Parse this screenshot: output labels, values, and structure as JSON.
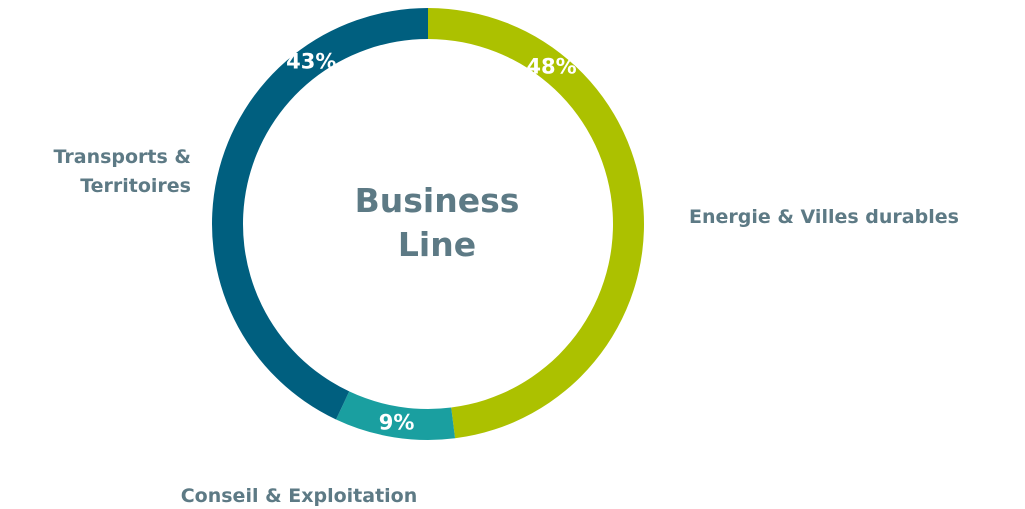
{
  "chart_data": {
    "type": "pie",
    "donut": true,
    "title_lines": [
      "Business",
      "Line"
    ],
    "slices": [
      {
        "label": "Energie & Villes durables",
        "value": 48,
        "value_label": "48%",
        "color": "#acc100"
      },
      {
        "label": "Conseil & Exploitation",
        "value": 9,
        "value_label": "9%",
        "color": "#1a9fa0"
      },
      {
        "label": "Transports & Territoires",
        "label_lines": [
          "Transports &",
          "Territoires"
        ],
        "value": 43,
        "value_label": "43%",
        "color": "#005f7f"
      }
    ],
    "legend": "none",
    "text_color": "#5d7a85"
  }
}
